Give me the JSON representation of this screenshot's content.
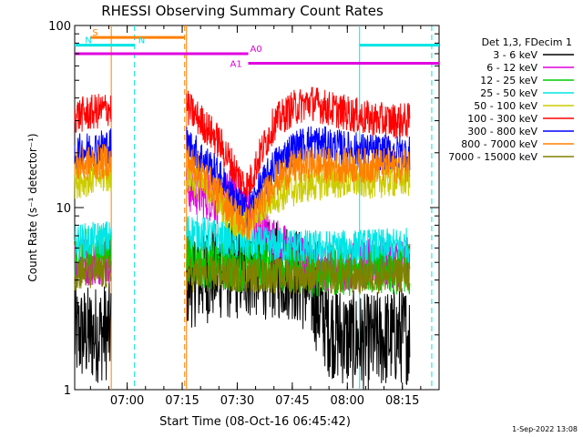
{
  "chart_data": {
    "type": "line",
    "title": "RHESSI Observing Summary Count Rates",
    "xlabel": "Start Time (08-Oct-16 06:45:42)",
    "ylabel": "Count Rate (s⁻¹ detector⁻¹)",
    "y_scale": "log",
    "ylim": [
      1,
      100
    ],
    "xlim": [
      "06:45:42",
      "08:25:00"
    ],
    "x_ticks": [
      "07:00",
      "07:15",
      "07:30",
      "07:45",
      "08:00",
      "08:15"
    ],
    "y_ticks": [
      "1",
      "10",
      "100"
    ],
    "legend_title": "Det 1,3, FDecim 1",
    "legend_position": "right",
    "footer": "1-Sep-2022 13:08",
    "data_gaps": [
      [
        "06:55:40",
        "07:16:10"
      ]
    ],
    "series": [
      {
        "name": "3 - 6 keV",
        "color": "#000000",
        "times": [
          "06:45:42",
          "06:50",
          "06:55",
          "07:16",
          "07:25",
          "07:30",
          "07:35",
          "07:40",
          "07:45",
          "07:50",
          "07:55",
          "08:00",
          "08:05",
          "08:10",
          "08:15",
          "08:17"
        ],
        "values": [
          2.0,
          2.0,
          2.1,
          4.0,
          4.5,
          4.5,
          4.6,
          4.5,
          4.5,
          3.5,
          2.2,
          1.9,
          1.8,
          1.9,
          2.0,
          2.0
        ]
      },
      {
        "name": "6 - 12 keV",
        "color": "#e000e0",
        "times": [
          "06:45:42",
          "06:50",
          "06:55",
          "07:16",
          "07:20",
          "07:25",
          "07:30",
          "07:35",
          "07:40",
          "07:45",
          "07:50",
          "07:55",
          "08:00",
          "08:05",
          "08:10",
          "08:15",
          "08:17"
        ],
        "values": [
          5.0,
          5.1,
          5.2,
          13.0,
          12.0,
          11.0,
          12.5,
          8.0,
          6.5,
          5.5,
          5.0,
          4.8,
          4.8,
          4.9,
          5.0,
          5.0,
          5.0
        ]
      },
      {
        "name": "12 - 25 keV",
        "color": "#00cc00",
        "times": [
          "06:45:42",
          "06:50",
          "06:55",
          "07:16",
          "07:20",
          "07:25",
          "07:30",
          "07:35",
          "07:40",
          "07:45",
          "07:50",
          "07:55",
          "08:00",
          "08:05",
          "08:10",
          "08:15",
          "08:17"
        ],
        "values": [
          5.5,
          5.6,
          5.8,
          5.5,
          5.0,
          4.8,
          4.7,
          4.8,
          4.8,
          4.7,
          4.4,
          4.5,
          4.5,
          4.6,
          4.6,
          4.6,
          4.6
        ]
      },
      {
        "name": "25 - 50 keV",
        "color": "#00e5e5",
        "times": [
          "06:45:42",
          "06:50",
          "06:55",
          "07:16",
          "07:20",
          "07:25",
          "07:30",
          "07:35",
          "07:40",
          "07:45",
          "07:50",
          "07:55",
          "08:00",
          "08:05",
          "08:10",
          "08:15",
          "08:17"
        ],
        "values": [
          6.5,
          6.6,
          6.8,
          7.5,
          7.2,
          6.8,
          6.5,
          6.3,
          6.2,
          6.2,
          6.0,
          6.0,
          6.0,
          6.1,
          6.1,
          6.2,
          6.2
        ]
      },
      {
        "name": "50 - 100 keV",
        "color": "#cccc00",
        "times": [
          "06:45:42",
          "06:50",
          "06:55",
          "07:16",
          "07:20",
          "07:25",
          "07:28",
          "07:31",
          "07:33",
          "07:36",
          "07:40",
          "07:45",
          "07:50",
          "07:55",
          "08:00",
          "08:05",
          "08:10",
          "08:15",
          "08:17"
        ],
        "values": [
          14.0,
          14.5,
          15.0,
          15.0,
          13.5,
          11.0,
          9.0,
          8.0,
          8.0,
          9.5,
          11.5,
          12.5,
          13.5,
          14.0,
          14.0,
          14.0,
          14.2,
          14.2,
          14.2
        ]
      },
      {
        "name": "100 - 300 keV",
        "color": "#ff0000",
        "times": [
          "06:45:42",
          "06:50",
          "06:55",
          "07:16",
          "07:20",
          "07:25",
          "07:28",
          "07:31",
          "07:33",
          "07:36",
          "07:40",
          "07:45",
          "07:50",
          "07:55",
          "08:00",
          "08:05",
          "08:10",
          "08:15",
          "08:17"
        ],
        "values": [
          32.0,
          33.0,
          35.0,
          36.0,
          30.0,
          23.0,
          18.0,
          14.0,
          13.0,
          19.0,
          29.0,
          35.0,
          38.0,
          35.0,
          33.0,
          31.0,
          30.0,
          30.0,
          30.0
        ]
      },
      {
        "name": "300 - 800 keV",
        "color": "#0000ff",
        "times": [
          "06:45:42",
          "06:50",
          "06:55",
          "07:16",
          "07:20",
          "07:25",
          "07:28",
          "07:31",
          "07:33",
          "07:36",
          "07:40",
          "07:45",
          "07:50",
          "07:55",
          "08:00",
          "08:05",
          "08:10",
          "08:15",
          "08:17"
        ],
        "values": [
          20.0,
          21.0,
          22.0,
          23.0,
          19.0,
          15.0,
          12.0,
          10.0,
          9.5,
          12.5,
          17.0,
          21.0,
          23.0,
          22.0,
          21.0,
          20.5,
          20.0,
          20.0,
          20.0
        ]
      },
      {
        "name": "800 - 7000 keV",
        "color": "#ff8000",
        "times": [
          "06:45:42",
          "06:50",
          "06:55",
          "07:16",
          "07:20",
          "07:25",
          "07:28",
          "07:31",
          "07:33",
          "07:36",
          "07:40",
          "07:45",
          "07:50",
          "07:55",
          "08:00",
          "08:05",
          "08:10",
          "08:15",
          "08:17"
        ],
        "values": [
          17.0,
          17.5,
          18.0,
          18.5,
          15.5,
          12.0,
          10.0,
          8.5,
          8.0,
          10.5,
          14.0,
          16.5,
          17.5,
          17.0,
          17.0,
          17.0,
          17.0,
          17.0,
          17.0
        ]
      },
      {
        "name": "7000 - 15000 keV",
        "color": "#808000",
        "times": [
          "06:45:42",
          "06:55",
          "07:16",
          "07:30",
          "07:45",
          "08:00",
          "08:15",
          "08:17"
        ],
        "values": [
          4.4,
          4.4,
          4.3,
          4.3,
          4.2,
          4.2,
          4.3,
          4.3
        ]
      }
    ],
    "markers": {
      "S": {
        "color": "#ff8000",
        "start": "06:50",
        "end": "07:15:40",
        "y": 86
      },
      "N": {
        "color": "#00e5e5",
        "segments": [
          [
            "06:45:42",
            "07:02:00"
          ],
          [
            "08:03:20",
            "08:25:00"
          ]
        ],
        "y": 78
      },
      "A0": {
        "color": "#e000e0",
        "start": "06:45:42",
        "end": "07:33:00",
        "y": 70
      },
      "A1": {
        "color": "#e000e0",
        "start": "07:33:00",
        "end": "08:25:00",
        "y": 62
      }
    },
    "vertical_lines": [
      {
        "time": "06:55:40",
        "color": "#ff8000",
        "dash": false
      },
      {
        "time": "07:02:00",
        "color": "#00e5e5",
        "dash": true
      },
      {
        "time": "07:15:40",
        "color": "#ff8000",
        "dash": true
      },
      {
        "time": "07:16:10",
        "color": "#ff8000",
        "dash": false
      },
      {
        "time": "08:03:20",
        "color": "#00e5e5",
        "dash": false
      },
      {
        "time": "08:23:00",
        "color": "#00e5e5",
        "dash": true
      }
    ]
  }
}
